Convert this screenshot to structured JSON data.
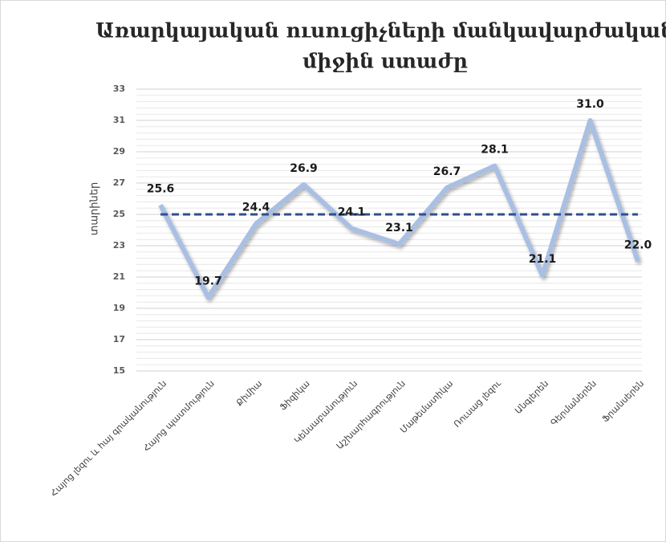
{
  "chart_data": {
    "type": "line",
    "title": [
      "Առարկայական ուսուցիչների մանկավարժական",
      "միջին ստաժը"
    ],
    "y_label": "տարիներ",
    "categories": [
      "Հայոց լեզու և հայ գրականություն",
      "Հայոց պատմություն",
      "Քիմիա",
      "Ֆիզիկա",
      "Կենսաբանություն",
      "Աշխարհագրություն",
      "Մաթեմատիկա",
      "Ռուսաց լեզու",
      "Անգլերեն",
      "Գերմաներեն",
      "Ֆրանսերեն"
    ],
    "values": [
      25.6,
      19.7,
      24.4,
      26.9,
      24.1,
      23.1,
      26.7,
      28.1,
      21.1,
      31.0,
      22.0
    ],
    "value_labels": [
      "25.6",
      "19.7",
      "24.4",
      "26.9",
      "24.1",
      "23.1",
      "26.7",
      "28.1",
      "21.1",
      "31.0",
      "22.0"
    ],
    "color": "#a9bfe3",
    "reference_line": {
      "value": 25,
      "color": "#2f4f8f"
    },
    "ylim": [
      15,
      33
    ],
    "yticks": [
      15,
      17,
      19,
      21,
      23,
      25,
      27,
      29,
      31,
      33
    ],
    "grid": true,
    "minor_grid": true
  }
}
